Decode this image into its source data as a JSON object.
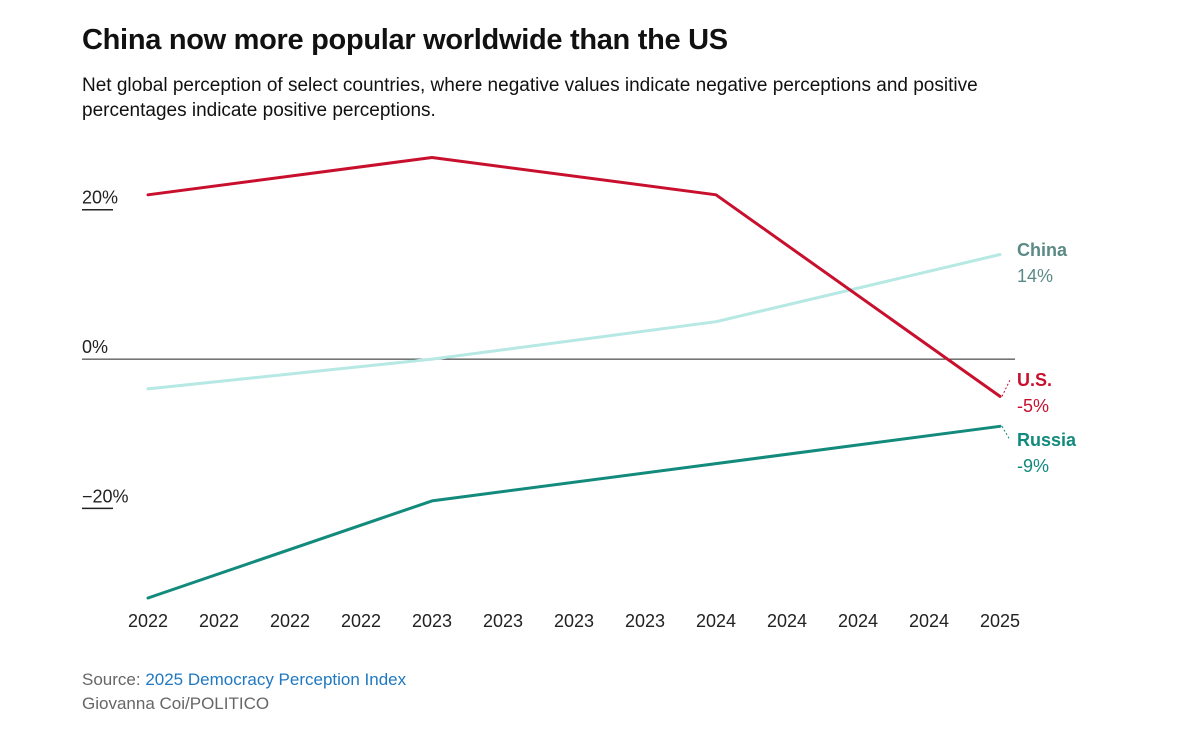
{
  "header": {
    "title": "China now more popular worldwide than the US",
    "subtitle": "Net global perception of select countries, where negative values indicate negative perceptions and positive percentages indicate positive perceptions."
  },
  "footer": {
    "source_prefix": "Source: ",
    "source_link": "2025 Democracy Perception Index",
    "credit": "Giovanna Coi/POLITICO"
  },
  "chart_data": {
    "type": "line",
    "title": "China now more popular worldwide than the US",
    "subtitle": "Net global perception of select countries, where negative values indicate negative perceptions and positive percentages indicate positive perceptions.",
    "x": [
      2022,
      2023,
      2024,
      2025
    ],
    "x_tick_labels": [
      "2022",
      "2022",
      "2022",
      "2022",
      "2023",
      "2023",
      "2023",
      "2023",
      "2024",
      "2024",
      "2024",
      "2024",
      "2025"
    ],
    "y_tick_labels": [
      "20%",
      "0%",
      "−20%"
    ],
    "y_ticks": [
      20,
      0,
      -20
    ],
    "ylim": [
      -32,
      28
    ],
    "grid": false,
    "series": [
      {
        "name": "U.S.",
        "values": [
          22,
          27,
          22,
          -5
        ],
        "end_label": "-5%",
        "color": "#c8102e"
      },
      {
        "name": "China",
        "values": [
          -4,
          0,
          5,
          14
        ],
        "end_label": "14%",
        "color": "#b6e8e4",
        "label_color": "#5b8a86"
      },
      {
        "name": "Russia",
        "values": [
          -32,
          -19,
          -14,
          -9
        ],
        "end_label": "-9%",
        "color": "#128a7c"
      }
    ]
  }
}
